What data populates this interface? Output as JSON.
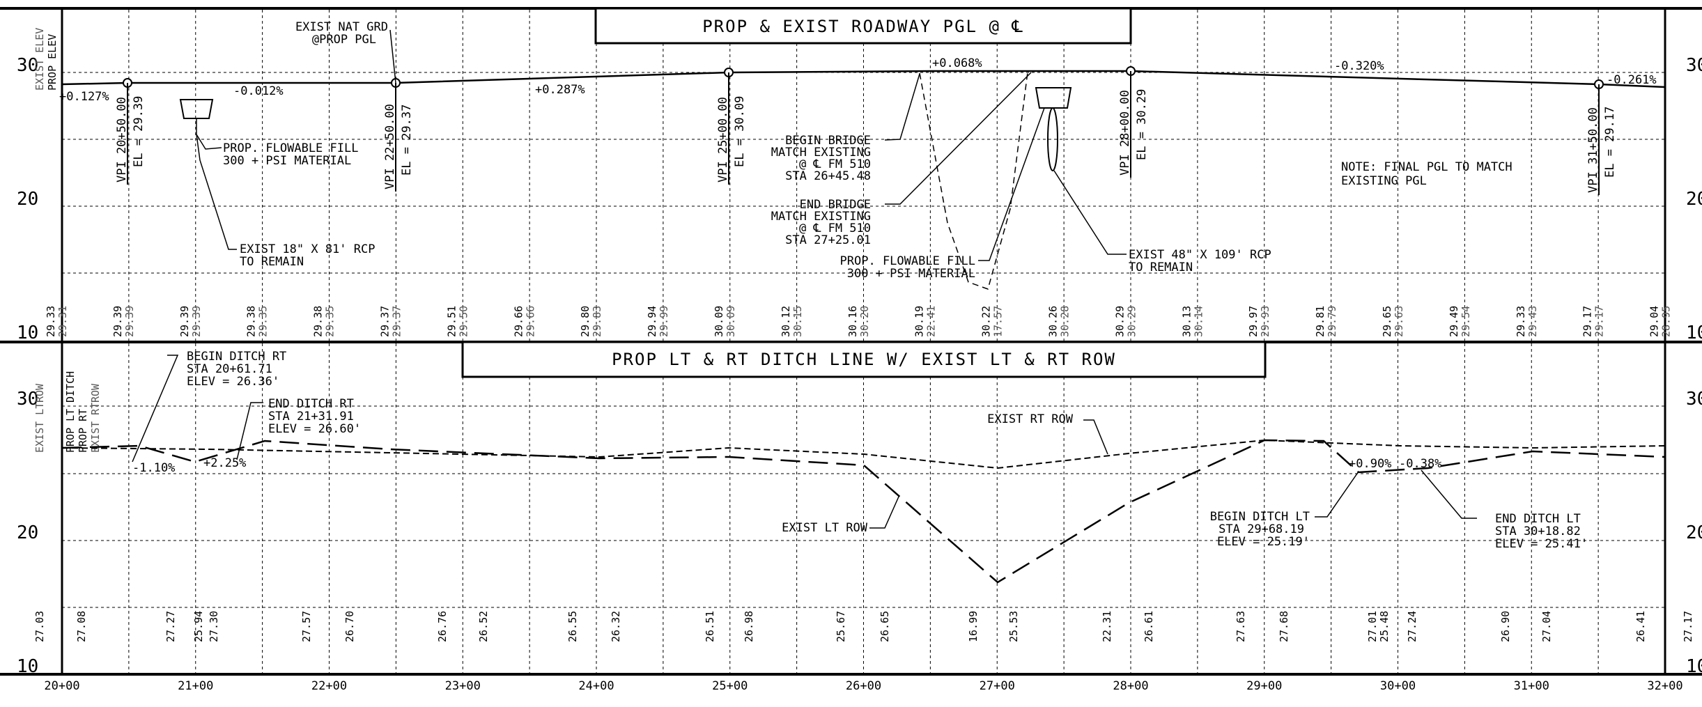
{
  "upper": {
    "title": "PROP & EXIST ROADWAY PGL @ ℄",
    "side_labels": {
      "prop": "PROP ELEV",
      "exist": "EXIST ELEV"
    },
    "y_ticks": [
      "30",
      "20",
      "10"
    ],
    "grades": [
      "+0.127%",
      "-0.012%",
      "+0.287%",
      "+0.068%",
      "-0.320%",
      "-0.261%"
    ],
    "vpis": [
      {
        "sta": "VPI 20+50.00",
        "el": "EL = 29.39"
      },
      {
        "sta": "VPI 22+50.00",
        "el": "EL = 29.37"
      },
      {
        "sta": "VPI 25+00.00",
        "el": "EL = 30.09"
      },
      {
        "sta": "VPI 28+00.00",
        "el": "EL = 30.29"
      },
      {
        "sta": "VPI 31+50.00",
        "el": "EL = 29.17"
      }
    ],
    "notes": {
      "exist_nat_grd": [
        "EXIST NAT GRD",
        "@PROP PGL"
      ],
      "flowable_fill_1": [
        "PROP. FLOWABLE FILL",
        "300 + PSI MATERIAL"
      ],
      "rcp_18": [
        "EXIST 18\" X 81' RCP",
        "TO REMAIN"
      ],
      "begin_bridge": [
        "BEGIN BRIDGE",
        "MATCH EXISTING",
        "@ ℄ FM 510",
        "STA 26+45.48"
      ],
      "end_bridge": [
        "END BRIDGE",
        "MATCH EXISTING",
        "@ ℄ FM 510",
        "STA 27+25.01"
      ],
      "flowable_fill_2": [
        "PROP. FLOWABLE FILL",
        "300 + PSI MATERIAL"
      ],
      "rcp_48": [
        "EXIST 48\" X 109' RCP",
        "TO REMAIN"
      ],
      "final_pgl": [
        "NOTE: FINAL PGL TO MATCH",
        "EXISTING PGL"
      ]
    },
    "elev_prop": [
      "29.33",
      "29.39",
      "29.39",
      "29.38",
      "29.38",
      "29.37",
      "29.51",
      "29.66",
      "29.80",
      "29.94",
      "30.09",
      "30.12",
      "30.16",
      "30.19",
      "30.22",
      "30.26",
      "30.29",
      "30.13",
      "29.97",
      "29.81",
      "29.65",
      "29.49",
      "29.33",
      "29.17",
      "29.04"
    ],
    "elev_exist": [
      "29.31",
      "29.39",
      "29.39",
      "29.35",
      "29.35",
      "29.37",
      "29.50",
      "29.66",
      "29.83",
      "29.99",
      "30.09",
      "30.15",
      "30.20",
      "22.41",
      "17.57",
      "30.28",
      "30.29",
      "30.14",
      "29.93",
      "29.79",
      "29.63",
      "29.54",
      "29.43",
      "29.17",
      "28.95"
    ]
  },
  "lower": {
    "title": "PROP LT &  RT DITCH LINE W/ EXIST LT & RT ROW",
    "side_labels": {
      "prop_lt": "PROP LT",
      "prop_rt": "PROP RT",
      "ditch": "DITCH",
      "exist_lt": "EXIST LT",
      "exist_rt": "EXIST RT",
      "row": "ROW"
    },
    "y_ticks": [
      "30",
      "20",
      "10"
    ],
    "grades": [
      "-1.10%",
      "+2.25%",
      "+0.90%",
      "-0.38%"
    ],
    "notes": {
      "begin_ditch_rt": [
        "BEGIN DITCH RT",
        "STA 20+61.71",
        "ELEV = 26.36'"
      ],
      "end_ditch_rt": [
        "END DITCH RT",
        "STA 21+31.91",
        "ELEV = 26.60'"
      ],
      "exist_rt_row": "EXIST RT ROW",
      "exist_lt_row": "EXIST LT ROW",
      "begin_ditch_lt": [
        "BEGIN DITCH LT",
        "STA 29+68.19",
        "ELEV = 25.19'"
      ],
      "end_ditch_lt": [
        "END DITCH LT",
        "STA 30+18.82",
        "ELEV = 25.41'"
      ]
    },
    "elevations": [
      "27.03",
      "27.08",
      "27.27",
      "25.94",
      "27.30",
      "27.57",
      "26.70",
      "26.76",
      "26.52",
      "26.55",
      "26.32",
      "26.51",
      "26.98",
      "25.67",
      "26.65",
      "16.99",
      "25.53",
      "22.31",
      "26.61",
      "27.63",
      "27.68",
      "27.01",
      "25.48",
      "27.24",
      "26.90",
      "27.04",
      "26.41",
      "27.17"
    ]
  },
  "stations": [
    "20+00",
    "21+00",
    "22+00",
    "23+00",
    "24+00",
    "25+00",
    "26+00",
    "27+00",
    "28+00",
    "29+00",
    "30+00",
    "31+00",
    "32+00"
  ]
}
